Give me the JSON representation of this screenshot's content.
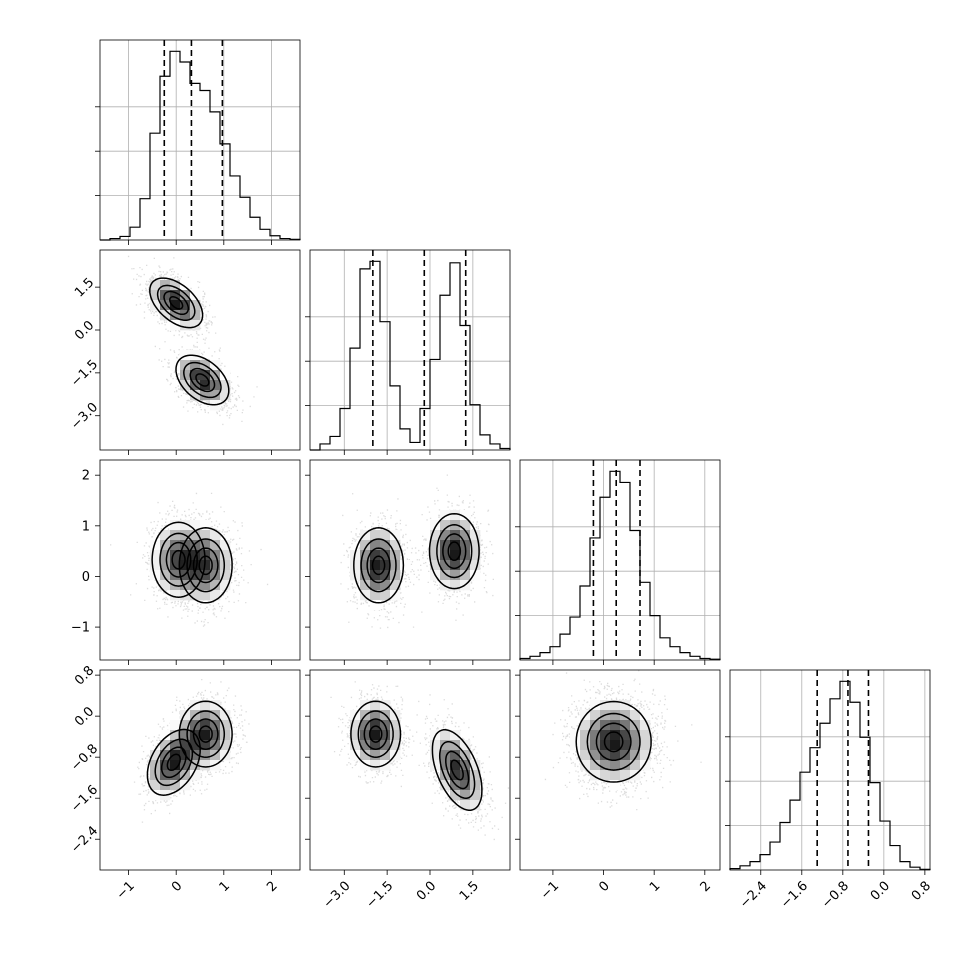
{
  "chart_data": {
    "type": "corner",
    "description_of_parameters": 4,
    "params": [
      {
        "index": 0,
        "range": [
          -1.6,
          2.6
        ],
        "ticks": [
          -1,
          0,
          1,
          2
        ],
        "tick_labels": [
          "−1",
          "0",
          "1",
          "2"
        ],
        "quantiles": [
          -0.25,
          0.32,
          0.97
        ]
      },
      {
        "index": 1,
        "range": [
          -4.2,
          2.8
        ],
        "ticks": [
          -3.0,
          -1.5,
          0.0,
          1.5
        ],
        "tick_labels": [
          "−3.0",
          "−1.5",
          "0.0",
          "1.5"
        ],
        "quantiles": [
          -2.0,
          -0.2,
          1.25
        ]
      },
      {
        "index": 2,
        "range": [
          -1.65,
          2.3
        ],
        "ticks": [
          -1,
          0,
          1,
          2
        ],
        "tick_labels": [
          "−1",
          "0",
          "1",
          "2"
        ],
        "quantiles": [
          -0.2,
          0.25,
          0.72
        ]
      },
      {
        "index": 3,
        "range": [
          -3.0,
          0.9
        ],
        "ticks": [
          -2.4,
          -1.6,
          -0.8,
          0.0,
          0.8
        ],
        "tick_labels": [
          "−2.4",
          "−1.6",
          "−0.8",
          "0.0",
          "0.8"
        ],
        "quantiles": [
          -1.3,
          -0.7,
          -0.3
        ]
      }
    ],
    "histograms": [
      {
        "param": 0,
        "edges_start": -1.6,
        "bin_width": 0.21,
        "counts": [
          0,
          2,
          5,
          18,
          58,
          150,
          230,
          265,
          250,
          220,
          210,
          180,
          135,
          90,
          60,
          32,
          15,
          6,
          2,
          1
        ]
      },
      {
        "param": 1,
        "edges_start": -4.2,
        "bin_width": 0.35,
        "counts": [
          0,
          8,
          18,
          55,
          135,
          240,
          250,
          170,
          85,
          28,
          10,
          55,
          120,
          205,
          248,
          165,
          60,
          20,
          8,
          2
        ]
      },
      {
        "param": 2,
        "edges_start": -1.65,
        "bin_width": 0.1975,
        "counts": [
          2,
          5,
          10,
          18,
          35,
          58,
          100,
          165,
          220,
          255,
          240,
          175,
          105,
          60,
          30,
          18,
          10,
          5,
          2,
          1
        ]
      },
      {
        "param": 3,
        "edges_start": -3.0,
        "bin_width": 0.195,
        "counts": [
          2,
          6,
          12,
          22,
          40,
          68,
          100,
          140,
          175,
          210,
          245,
          270,
          240,
          190,
          125,
          70,
          35,
          12,
          4,
          1
        ]
      }
    ],
    "pairs": [
      {
        "x_param": 0,
        "y_param": 1,
        "components": [
          {
            "weight": 0.5,
            "mean": [
              0.0,
              0.95
            ],
            "cov": [
              [
                0.09,
                -0.07
              ],
              [
                -0.07,
                0.22
              ]
            ]
          },
          {
            "weight": 0.5,
            "mean": [
              0.55,
              -1.75
            ],
            "cov": [
              [
                0.09,
                -0.06
              ],
              [
                -0.06,
                0.22
              ]
            ]
          }
        ]
      },
      {
        "x_param": 0,
        "y_param": 2,
        "components": [
          {
            "weight": 0.5,
            "mean": [
              0.05,
              0.33
            ],
            "cov": [
              [
                0.09,
                0.0
              ],
              [
                0.0,
                0.16
              ]
            ]
          },
          {
            "weight": 0.5,
            "mean": [
              0.62,
              0.22
            ],
            "cov": [
              [
                0.09,
                0.0
              ],
              [
                0.0,
                0.16
              ]
            ]
          }
        ]
      },
      {
        "x_param": 1,
        "y_param": 2,
        "components": [
          {
            "weight": 0.5,
            "mean": [
              -1.8,
              0.22
            ],
            "cov": [
              [
                0.22,
                0.0
              ],
              [
                0.0,
                0.16
              ]
            ]
          },
          {
            "weight": 0.5,
            "mean": [
              0.85,
              0.5
            ],
            "cov": [
              [
                0.22,
                0.0
              ],
              [
                0.0,
                0.16
              ]
            ]
          }
        ]
      },
      {
        "x_param": 0,
        "y_param": 3,
        "components": [
          {
            "weight": 0.5,
            "mean": [
              -0.05,
              -0.9
            ],
            "cov": [
              [
                0.09,
                0.04
              ],
              [
                0.04,
                0.12
              ]
            ]
          },
          {
            "weight": 0.5,
            "mean": [
              0.62,
              -0.35
            ],
            "cov": [
              [
                0.09,
                0.0
              ],
              [
                0.0,
                0.12
              ]
            ]
          }
        ]
      },
      {
        "x_param": 1,
        "y_param": 3,
        "components": [
          {
            "weight": 0.5,
            "mean": [
              -1.9,
              -0.35
            ],
            "cov": [
              [
                0.22,
                0.0
              ],
              [
                0.0,
                0.12
              ]
            ]
          },
          {
            "weight": 0.5,
            "mean": [
              0.95,
              -1.05
            ],
            "cov": [
              [
                0.22,
                -0.1
              ],
              [
                -0.1,
                0.18
              ]
            ]
          }
        ]
      },
      {
        "x_param": 2,
        "y_param": 3,
        "components": [
          {
            "weight": 1.0,
            "mean": [
              0.2,
              -0.5
            ],
            "cov": [
              [
                0.16,
                0.0
              ],
              [
                0.0,
                0.18
              ]
            ]
          }
        ]
      }
    ],
    "grid": true,
    "contour_levels": 4,
    "title": "",
    "xlabel": "",
    "ylabel": ""
  }
}
